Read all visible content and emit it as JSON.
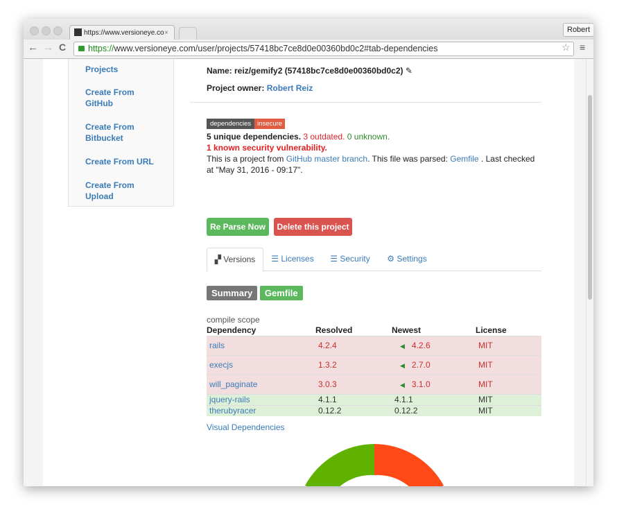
{
  "browser": {
    "tab_title": "https://www.versioneye.com",
    "user": "Robert",
    "url": {
      "scheme": "https://",
      "rest": "www.versioneye.com/user/projects/57418bc7ce8d0e00360bd0c2#tab-dependencies"
    }
  },
  "sidebar": [
    "Projects",
    "Create From GitHub",
    "Create From Bitbucket",
    "Create From URL",
    "Create From Upload"
  ],
  "project": {
    "name": "Name: reiz/gemify2 (57418bc7ce8d0e00360bd0c2)",
    "owner_label": "Project owner:",
    "owner": "Robert Reiz"
  },
  "badge": {
    "label": "dependencies",
    "status": "insecure"
  },
  "summary": {
    "unique": "5 unique dependencies.",
    "outdated": "3 outdated.",
    "unknown": "0 unknown.",
    "security": "1 known security vulnerability.",
    "source": [
      "This is a project from ",
      "GitHub master branch",
      ". This file was parsed: ",
      "Gemfile",
      " . Last checked at \"May 31, 2016 - 09:17\"."
    ]
  },
  "buttons": [
    "Re Parse Now",
    "Delete this project"
  ],
  "tabs": [
    "Versions",
    "Licenses",
    "Security",
    "Settings"
  ],
  "file_badges": [
    "Summary",
    "Gemfile"
  ],
  "table": {
    "caption": "compile scope",
    "columns": [
      "Dependency",
      "Resolved",
      "Newest",
      "License"
    ],
    "rows": [
      [
        "rails",
        "4.2.4",
        "4.2.6",
        "MIT"
      ],
      [
        "execjs",
        "1.3.2",
        "2.7.0",
        "MIT"
      ],
      [
        "will_paginate",
        "3.0.3",
        "3.1.0",
        "MIT"
      ],
      [
        "jquery-rails",
        "4.1.1",
        "4.1.1",
        "MIT"
      ],
      [
        "therubyracer",
        "0.12.2",
        "0.12.2",
        "MIT"
      ]
    ]
  },
  "link": "Visual Dependencies"
}
